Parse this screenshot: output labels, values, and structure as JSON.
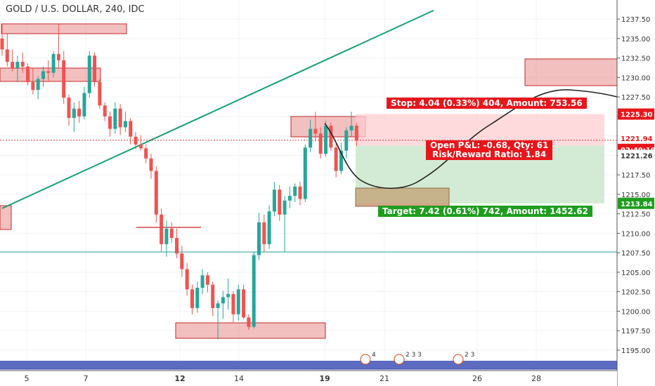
{
  "header": {
    "title": "GOLD / U.S. DOLLAR, 240, IDC"
  },
  "price_labels": {
    "stop": "1225.30",
    "current": "1221.94",
    "countdown": "02:49:19",
    "entry": "1221.26",
    "target": "1213.84"
  },
  "position": {
    "stop_text": "Stop: 4.04 (0.33%) 404, Amount: 753.56",
    "target_text": "Target: 7.42 (0.61%) 742, Amount: 1452.62",
    "pnl_text": "Open P&L: -0.68, Qty: 61",
    "rr_text": "Risk/Reward Ratio: 1.84"
  },
  "events": [
    "4",
    "2 3 3",
    "2 3"
  ],
  "colors": {
    "up": "#26a69a",
    "down": "#ef5350",
    "trendline": "#13a36d",
    "hline": "#26a69a",
    "zone": "#e57373",
    "stop_zone": "#ffcdd2",
    "target_zone": "#c8e6c9"
  },
  "chart_data": {
    "type": "candlestick",
    "title": "GOLD / U.S. DOLLAR, 240, IDC",
    "ylim": [
      1194,
      1238.5
    ],
    "y_ticks": [
      1195,
      1197.5,
      1200,
      1202.5,
      1205,
      1207.5,
      1210,
      1212.5,
      1215,
      1217.5,
      1220,
      1222.5,
      1225,
      1227.5,
      1230,
      1232.5,
      1235,
      1237.5
    ],
    "x_ticks": [
      "5",
      "7",
      "12",
      "14",
      "19",
      "21",
      "26",
      "28"
    ],
    "candles_ohlc": [
      [
        1235.0,
        1236.8,
        1232.8,
        1233.6
      ],
      [
        1233.6,
        1235.6,
        1231.4,
        1232.0
      ],
      [
        1232.0,
        1233.6,
        1230.8,
        1231.2
      ],
      [
        1231.2,
        1232.8,
        1229.4,
        1232.0
      ],
      [
        1232.0,
        1233.2,
        1230.6,
        1231.4
      ],
      [
        1231.4,
        1231.8,
        1229.0,
        1229.4
      ],
      [
        1229.4,
        1231.2,
        1227.8,
        1228.4
      ],
      [
        1228.4,
        1230.2,
        1227.2,
        1229.8
      ],
      [
        1229.8,
        1231.4,
        1228.8,
        1230.8
      ],
      [
        1230.8,
        1232.2,
        1229.6,
        1230.6
      ],
      [
        1230.6,
        1233.4,
        1230.0,
        1233.0
      ],
      [
        1233.0,
        1236.8,
        1231.2,
        1232.2
      ],
      [
        1232.2,
        1233.4,
        1226.6,
        1227.4
      ],
      [
        1227.4,
        1227.8,
        1223.8,
        1224.8
      ],
      [
        1224.8,
        1226.8,
        1223.0,
        1226.0
      ],
      [
        1226.0,
        1227.0,
        1224.2,
        1225.0
      ],
      [
        1225.0,
        1228.8,
        1224.6,
        1228.0
      ],
      [
        1228.0,
        1233.4,
        1227.4,
        1232.8
      ],
      [
        1232.8,
        1233.2,
        1228.8,
        1229.4
      ],
      [
        1229.4,
        1229.8,
        1226.0,
        1226.4
      ],
      [
        1226.4,
        1226.8,
        1224.4,
        1225.0
      ],
      [
        1225.0,
        1225.6,
        1222.4,
        1223.4
      ],
      [
        1223.4,
        1226.8,
        1222.8,
        1226.0
      ],
      [
        1226.0,
        1226.6,
        1222.6,
        1223.6
      ],
      [
        1223.6,
        1225.6,
        1223.0,
        1224.4
      ],
      [
        1224.4,
        1224.8,
        1221.4,
        1222.4
      ],
      [
        1222.4,
        1223.0,
        1220.8,
        1221.4
      ],
      [
        1221.4,
        1222.6,
        1220.6,
        1220.9
      ],
      [
        1220.9,
        1221.4,
        1219.0,
        1219.6
      ],
      [
        1219.6,
        1220.2,
        1217.0,
        1218.0
      ],
      [
        1218.0,
        1218.6,
        1211.4,
        1212.4
      ],
      [
        1212.4,
        1213.2,
        1207.6,
        1208.6
      ],
      [
        1208.6,
        1211.6,
        1207.0,
        1210.6
      ],
      [
        1210.6,
        1211.4,
        1208.8,
        1209.4
      ],
      [
        1209.4,
        1210.6,
        1206.8,
        1207.4
      ],
      [
        1207.4,
        1208.4,
        1204.4,
        1205.4
      ],
      [
        1205.4,
        1206.2,
        1202.0,
        1202.8
      ],
      [
        1202.8,
        1203.4,
        1199.6,
        1200.4
      ],
      [
        1200.4,
        1203.8,
        1199.8,
        1203.0
      ],
      [
        1203.0,
        1205.4,
        1202.2,
        1204.6
      ],
      [
        1204.6,
        1205.0,
        1202.4,
        1203.4
      ],
      [
        1203.4,
        1203.8,
        1199.4,
        1200.4
      ],
      [
        1200.4,
        1201.4,
        1196.4,
        1201.0
      ],
      [
        1201.0,
        1202.6,
        1199.0,
        1201.8
      ],
      [
        1201.8,
        1204.2,
        1200.2,
        1202.2
      ],
      [
        1202.2,
        1202.6,
        1198.6,
        1199.6
      ],
      [
        1199.6,
        1203.4,
        1198.8,
        1202.8
      ],
      [
        1202.8,
        1203.4,
        1199.0,
        1199.2
      ],
      [
        1199.2,
        1199.6,
        1197.6,
        1198.0
      ],
      [
        1198.0,
        1207.6,
        1197.8,
        1207.2
      ],
      [
        1207.2,
        1212.6,
        1206.6,
        1211.4
      ],
      [
        1211.4,
        1212.4,
        1207.6,
        1208.6
      ],
      [
        1208.6,
        1213.6,
        1208.0,
        1212.8
      ],
      [
        1212.8,
        1216.6,
        1212.2,
        1215.6
      ],
      [
        1215.6,
        1216.2,
        1211.6,
        1212.4
      ],
      [
        1212.4,
        1214.8,
        1207.6,
        1214.2
      ],
      [
        1214.2,
        1216.0,
        1213.2,
        1214.8
      ],
      [
        1214.8,
        1216.4,
        1214.0,
        1216.0
      ],
      [
        1216.0,
        1216.6,
        1213.6,
        1214.4
      ],
      [
        1214.4,
        1221.4,
        1214.0,
        1221.0
      ],
      [
        1221.0,
        1224.6,
        1220.4,
        1223.4
      ],
      [
        1223.4,
        1225.6,
        1221.8,
        1222.8
      ],
      [
        1222.8,
        1223.6,
        1219.6,
        1220.2
      ],
      [
        1220.2,
        1224.4,
        1219.8,
        1223.8
      ],
      [
        1223.8,
        1224.2,
        1220.6,
        1221.0
      ],
      [
        1221.0,
        1221.6,
        1217.2,
        1218.0
      ],
      [
        1218.0,
        1221.6,
        1217.6,
        1220.6
      ],
      [
        1220.6,
        1223.6,
        1219.6,
        1223.2
      ],
      [
        1223.2,
        1225.6,
        1222.4,
        1223.8
      ],
      [
        1223.8,
        1224.2,
        1221.2,
        1221.9
      ]
    ],
    "trendline": [
      [
        0,
        1213.2
      ],
      [
        84,
        1238.6
      ]
    ],
    "horizontal_lines": [
      1207.6
    ],
    "position_levels": {
      "stop": 1225.3,
      "entry": 1221.26,
      "target": 1213.84
    }
  }
}
